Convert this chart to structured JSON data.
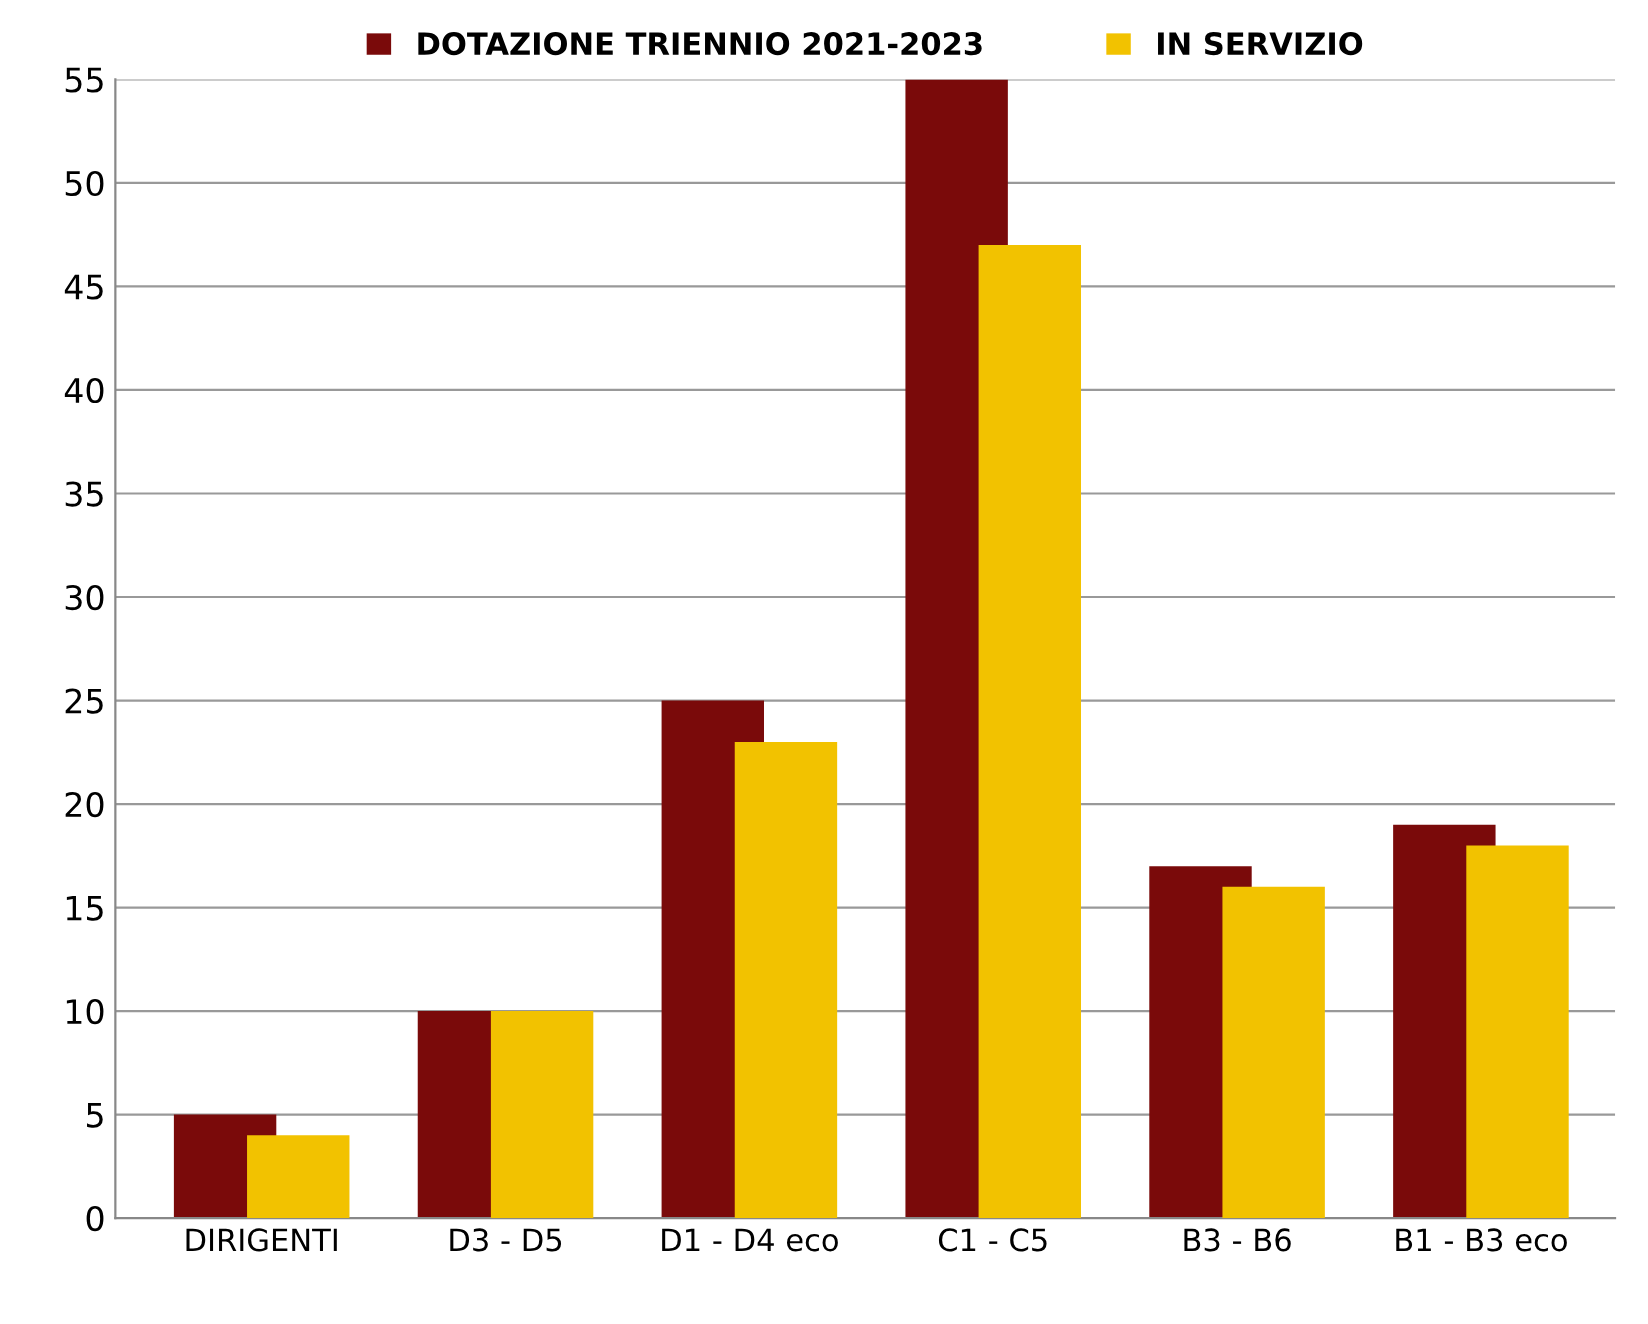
{
  "chart_data": {
    "type": "bar",
    "categories": [
      "DIRIGENTI",
      "D3 - D5",
      "D1 - D4 eco",
      "C1 - C5",
      "B3 - B6",
      "B1 - B3 eco"
    ],
    "series": [
      {
        "name": "DOTAZIONE TRIENNIO 2021-2023",
        "color": "#7a0a0a",
        "values": [
          5,
          10,
          25,
          55,
          17,
          19
        ]
      },
      {
        "name": "IN SERVIZIO",
        "color": "#f2c200",
        "values": [
          4,
          10,
          23,
          47,
          16,
          18
        ]
      }
    ],
    "ylim": [
      0,
      55
    ],
    "yticks": [
      0,
      5,
      10,
      15,
      20,
      25,
      30,
      35,
      40,
      45,
      50,
      55
    ],
    "grid": "y",
    "legend": "top"
  }
}
